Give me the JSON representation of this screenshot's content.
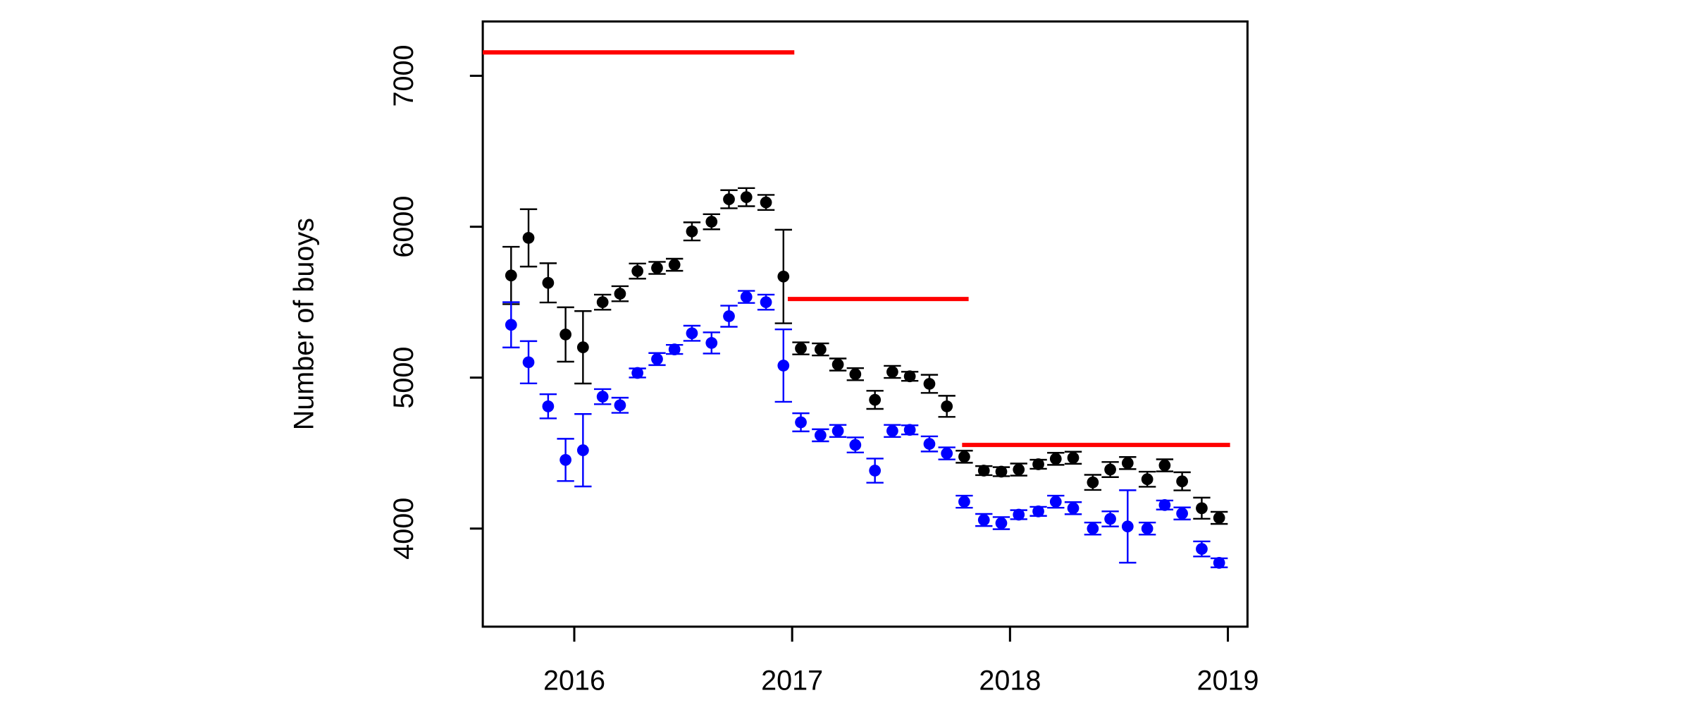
{
  "chart_data": {
    "type": "scatter",
    "y_label": "Number of buoys",
    "xlim": [
      2015.58,
      2019.09
    ],
    "xticks": [
      2016,
      2017,
      2018,
      2019
    ],
    "ylim": [
      3350,
      7360
    ],
    "yticks": [
      4000,
      5000,
      6000,
      7000
    ],
    "grid": false,
    "x": [
      2015.71,
      2015.79,
      2015.88,
      2015.96,
      2016.04,
      2016.13,
      2016.21,
      2016.29,
      2016.38,
      2016.46,
      2016.54,
      2016.63,
      2016.71,
      2016.79,
      2016.88,
      2016.96,
      2017.04,
      2017.13,
      2017.21,
      2017.29,
      2017.38,
      2017.46,
      2017.54,
      2017.63,
      2017.71,
      2017.79,
      2017.88,
      2017.96,
      2018.04,
      2018.13,
      2018.21,
      2018.29,
      2018.38,
      2018.46,
      2018.54,
      2018.63,
      2018.71,
      2018.79,
      2018.88,
      2018.96
    ],
    "series": [
      {
        "color": "#000000",
        "values": [
          5677,
          5926,
          5628,
          5286,
          5201,
          5500,
          5556,
          5706,
          5727,
          5748,
          5969,
          6033,
          6182,
          6196,
          6161,
          5670,
          5194,
          5187,
          5087,
          5023,
          4853,
          5038,
          5009,
          4959,
          4810,
          4476,
          4384,
          4377,
          4391,
          4426,
          4462,
          4469,
          4306,
          4391,
          4434,
          4327,
          4419,
          4313,
          4135,
          4071
        ],
        "errors": [
          190,
          190,
          130,
          180,
          240,
          50,
          50,
          50,
          40,
          40,
          60,
          50,
          60,
          60,
          50,
          310,
          40,
          40,
          40,
          40,
          60,
          40,
          30,
          60,
          70,
          40,
          30,
          30,
          40,
          30,
          40,
          40,
          50,
          50,
          40,
          50,
          40,
          60,
          70,
          40
        ]
      },
      {
        "color": "#0000ff",
        "values": [
          5350,
          5102,
          4810,
          4455,
          4519,
          4874,
          4817,
          5031,
          5123,
          5187,
          5294,
          5230,
          5407,
          5535,
          5500,
          5080,
          4704,
          4618,
          4647,
          4554,
          4384,
          4647,
          4654,
          4561,
          4498,
          4178,
          4057,
          4036,
          4092,
          4114,
          4178,
          4135,
          4000,
          4064,
          4014,
          4000,
          4156,
          4100,
          3865,
          3773
        ],
        "errors": [
          150,
          140,
          80,
          140,
          240,
          50,
          50,
          30,
          40,
          30,
          50,
          70,
          70,
          40,
          50,
          240,
          60,
          40,
          40,
          50,
          80,
          40,
          30,
          50,
          40,
          40,
          40,
          40,
          30,
          30,
          40,
          40,
          40,
          50,
          240,
          40,
          30,
          40,
          50,
          30
        ]
      }
    ],
    "reference_lines": [
      {
        "color": "#ff0000",
        "x": [
          2015.58,
          2017.01
        ],
        "value": 7155
      },
      {
        "color": "#ff0000",
        "x": [
          2016.98,
          2017.81
        ],
        "value": 5521
      },
      {
        "color": "#ff0000",
        "x": [
          2017.78,
          2019.01
        ],
        "value": 4554
      }
    ]
  }
}
